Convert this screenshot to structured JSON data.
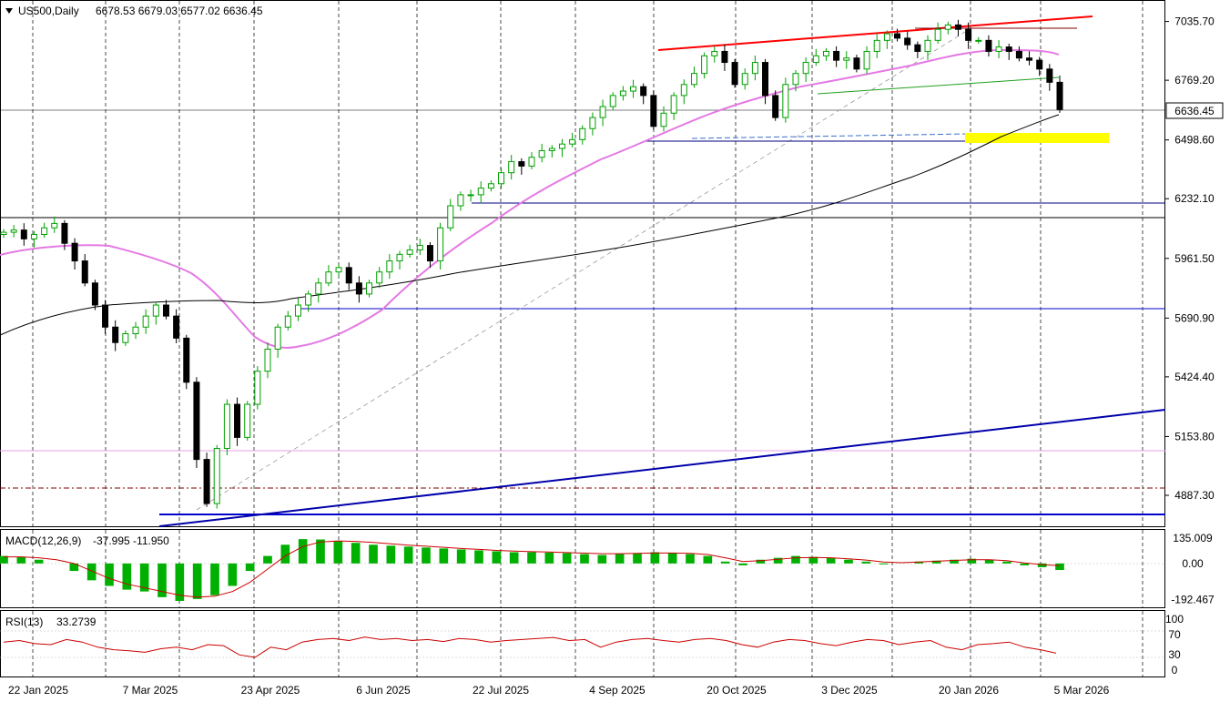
{
  "chart_data": [
    {
      "type": "candlestick",
      "title": "US500,Daily",
      "ohlc_text": "6678.53 6679.03 6577.02 6636.45",
      "last_price_label": "6636.45",
      "y_ticks": [
        "7035.70",
        "6769.20",
        "6498.60",
        "6232.10",
        "5961.50",
        "5690.90",
        "5424.40",
        "5153.80",
        "4887.30"
      ],
      "ylim": [
        4780,
        7100
      ],
      "x_tick_labels": [
        "22 Jan 2025",
        "7 Mar 2025",
        "23 Apr 2025",
        "6 Jun 2025",
        "22 Jul 2025",
        "4 Sep 2025",
        "20 Oct 2025",
        "3 Dec 2025",
        "20 Jan 2026",
        "5 Mar 2026"
      ],
      "grid": "vertical dashed",
      "series": [
        {
          "name": "Close (approx.)",
          "color": "#000000",
          "values": [
            6080,
            6090,
            6050,
            6070,
            6100,
            6120,
            6030,
            5950,
            5850,
            5750,
            5650,
            5580,
            5620,
            5650,
            5700,
            5750,
            5700,
            5600,
            5400,
            5050,
            4850,
            5100,
            5300,
            5150,
            5300,
            5450,
            5550,
            5650,
            5700,
            5750,
            5800,
            5850,
            5900,
            5920,
            5850,
            5800,
            5850,
            5900,
            5950,
            5980,
            6000,
            6020,
            5950,
            6100,
            6200,
            6250,
            6250,
            6280,
            6300,
            6350,
            6400,
            6380,
            6420,
            6450,
            6460,
            6480,
            6500,
            6550,
            6600,
            6650,
            6700,
            6720,
            6740,
            6700,
            6560,
            6620,
            6700,
            6750,
            6800,
            6880,
            6900,
            6850,
            6750,
            6800,
            6850,
            6700,
            6600,
            6750,
            6800,
            6850,
            6880,
            6900,
            6860,
            6870,
            6820,
            6900,
            6950,
            6980,
            6960,
            6930,
            6900,
            6950,
            7000,
            7020,
            7000,
            6950,
            6950,
            6900,
            6920,
            6900,
            6870,
            6860,
            6820,
            6760,
            6636.45
          ]
        }
      ],
      "overlays": [
        {
          "name": "MA magenta",
          "color": "#e47ae4"
        },
        {
          "name": "MA black",
          "color": "#000000"
        }
      ],
      "levels": [
        {
          "label": "upper channel",
          "color": "#ff0000"
        },
        {
          "label": "lower trendline",
          "color": "#0000aa"
        },
        {
          "label": "support",
          "color": "#000080"
        },
        {
          "label": "highlight zone",
          "color": "#ffff00"
        }
      ]
    },
    {
      "type": "bar",
      "title": "MACD(12,26,9)",
      "values_text": "-37.995 -11.950",
      "y_ticks": [
        "135.009",
        "0.00",
        "-192.467"
      ],
      "ylim": [
        -210,
        150
      ],
      "series": [
        {
          "name": "MACD",
          "color": "#00b000",
          "values": [
            40,
            35,
            20,
            0,
            -40,
            -90,
            -120,
            -140,
            -150,
            -180,
            -200,
            -190,
            -170,
            -120,
            -40,
            40,
            100,
            130,
            128,
            120,
            110,
            100,
            95,
            90,
            85,
            80,
            75,
            70,
            65,
            60,
            60,
            58,
            55,
            50,
            45,
            50,
            55,
            60,
            55,
            50,
            40,
            10,
            -10,
            20,
            30,
            40,
            35,
            30,
            20,
            10,
            -5,
            0,
            10,
            15,
            20,
            25,
            20,
            10,
            -10,
            -20,
            -35
          ]
        },
        {
          "name": "Signal",
          "color": "#cc0000",
          "values": [
            35,
            35,
            30,
            20,
            0,
            -40,
            -80,
            -110,
            -130,
            -150,
            -170,
            -180,
            -175,
            -150,
            -100,
            -30,
            40,
            90,
            115,
            120,
            118,
            112,
            105,
            98,
            92,
            86,
            80,
            75,
            70,
            66,
            63,
            61,
            58,
            55,
            52,
            52,
            54,
            56,
            56,
            54,
            48,
            30,
            10,
            15,
            22,
            30,
            32,
            30,
            25,
            18,
            8,
            4,
            8,
            12,
            16,
            20,
            20,
            15,
            3,
            -6,
            -12
          ]
        }
      ]
    },
    {
      "type": "line",
      "title": "RSI(13)",
      "value_text": "33.2739",
      "y_ticks": [
        "100",
        "70",
        "30",
        "0"
      ],
      "ylim": [
        0,
        100
      ],
      "series": [
        {
          "name": "RSI",
          "color": "#cc0000",
          "values": [
            55,
            58,
            52,
            50,
            60,
            55,
            45,
            40,
            38,
            35,
            42,
            45,
            40,
            50,
            48,
            30,
            25,
            45,
            40,
            55,
            60,
            62,
            58,
            65,
            60,
            62,
            58,
            60,
            56,
            62,
            60,
            55,
            58,
            60,
            62,
            64,
            58,
            60,
            45,
            55,
            60,
            62,
            58,
            55,
            60,
            62,
            58,
            50,
            45,
            55,
            60,
            58,
            52,
            48,
            55,
            60,
            58,
            50,
            55,
            58,
            45,
            40,
            50,
            52,
            55,
            45,
            40,
            33.27
          ]
        }
      ]
    }
  ],
  "colors": {
    "bull_candle": "#00a000",
    "bear_candle": "#000000",
    "price_label_bg": "#ffffff"
  },
  "icons": {
    "title_marker": "triangle-down-icon"
  }
}
